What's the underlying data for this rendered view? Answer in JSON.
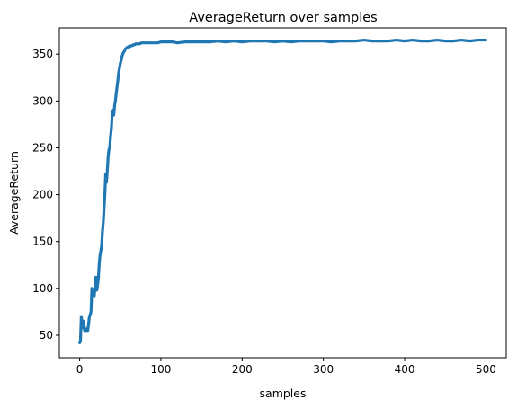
{
  "chart_data": {
    "type": "line",
    "title": "AverageReturn  over samples",
    "xlabel": "samples",
    "ylabel": "AverageReturn",
    "xlim": [
      -25,
      525
    ],
    "ylim": [
      26,
      378
    ],
    "xticks": [
      0,
      100,
      200,
      300,
      400,
      500
    ],
    "yticks": [
      50,
      100,
      150,
      200,
      250,
      300,
      350
    ],
    "grid": false,
    "color": "#1f77b4",
    "series": [
      {
        "name": "",
        "x": [
          0,
          1,
          2,
          3,
          4,
          5,
          6,
          7,
          8,
          9,
          10,
          11,
          12,
          13,
          14,
          15,
          16,
          17,
          18,
          19,
          20,
          21,
          22,
          23,
          24,
          25,
          26,
          27,
          28,
          29,
          30,
          31,
          32,
          33,
          34,
          35,
          36,
          37,
          38,
          39,
          40,
          41,
          42,
          43,
          44,
          45,
          46,
          47,
          48,
          49,
          50,
          51,
          52,
          53,
          54,
          55,
          56,
          57,
          58,
          59,
          60,
          61,
          62,
          63,
          64,
          65,
          66,
          67,
          68,
          69,
          70,
          72,
          74,
          76,
          78,
          80,
          82,
          85,
          88,
          92,
          96,
          100,
          105,
          110,
          115,
          120,
          130,
          140,
          150,
          160,
          170,
          180,
          190,
          200,
          210,
          220,
          230,
          240,
          250,
          260,
          270,
          280,
          290,
          300,
          310,
          320,
          330,
          340,
          350,
          360,
          370,
          380,
          390,
          400,
          410,
          420,
          430,
          440,
          450,
          460,
          470,
          480,
          490,
          500
        ],
        "y": [
          42,
          44,
          70,
          62,
          58,
          65,
          55,
          56,
          55,
          57,
          55,
          62,
          70,
          72,
          75,
          100,
          93,
          98,
          92,
          102,
          112,
          98,
          103,
          110,
          125,
          135,
          140,
          145,
          160,
          170,
          185,
          200,
          222,
          213,
          225,
          240,
          248,
          250,
          262,
          270,
          285,
          290,
          285,
          295,
          300,
          308,
          315,
          322,
          330,
          335,
          340,
          343,
          347,
          350,
          352,
          353,
          355,
          356,
          357,
          357,
          358,
          358,
          358,
          359,
          359,
          359,
          360,
          360,
          360,
          361,
          361,
          361,
          361,
          362,
          362,
          362,
          362,
          362,
          362,
          362,
          362,
          363,
          363,
          363,
          363,
          362,
          363,
          363,
          363,
          363,
          364,
          363,
          364,
          363,
          364,
          364,
          364,
          363,
          364,
          363,
          364,
          364,
          364,
          364,
          363,
          364,
          364,
          364,
          365,
          364,
          364,
          364,
          365,
          364,
          365,
          364,
          364,
          365,
          364,
          364,
          365,
          364,
          365,
          365
        ]
      }
    ]
  }
}
